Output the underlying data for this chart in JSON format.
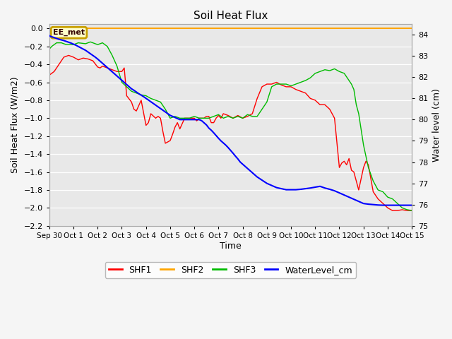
{
  "title": "Soil Heat Flux",
  "ylabel_left": "Soil Heat Flux (W/m2)",
  "ylabel_right": "Water level (cm)",
  "xlabel": "Time",
  "ylim_left": [
    -2.2,
    0.05
  ],
  "ylim_right": [
    75.0,
    84.5
  ],
  "background_color": "#f5f5f5",
  "plot_bg_color": "#e8e8e8",
  "annotation_text": "EE_met",
  "annotation_color": "#c8a000",
  "x_ticks": [
    "Sep 30",
    "Oct 1",
    "Oct 2",
    "Oct 3",
    "Oct 4",
    "Oct 5",
    "Oct 6",
    "Oct 7",
    "Oct 8",
    "Oct 9",
    "Oct 10",
    "Oct 11",
    "Oct 12",
    "Oct 13",
    "Oct 14",
    "Oct 15"
  ],
  "shf2_value": 0.0,
  "shf2_color": "#ffa500",
  "shf1_color": "#ff0000",
  "shf3_color": "#00bb00",
  "water_color": "#0000ff",
  "shf1_x": [
    0,
    0.2,
    0.4,
    0.6,
    0.8,
    1.0,
    1.2,
    1.4,
    1.6,
    1.8,
    2.0,
    2.1,
    2.2,
    2.4,
    2.6,
    2.8,
    3.0,
    3.1,
    3.2,
    3.4,
    3.5,
    3.6,
    3.8,
    4.0,
    4.1,
    4.2,
    4.4,
    4.5,
    4.6,
    4.7,
    4.8,
    5.0,
    5.1,
    5.2,
    5.3,
    5.4,
    5.6,
    5.8,
    6.0,
    6.1,
    6.2,
    6.4,
    6.5,
    6.6,
    6.7,
    6.8,
    6.9,
    7.0,
    7.1,
    7.2,
    7.4,
    7.6,
    7.8,
    8.0,
    8.2,
    8.4,
    8.6,
    8.8,
    9.0,
    9.2,
    9.4,
    9.6,
    9.8,
    10.0,
    10.2,
    10.4,
    10.6,
    10.8,
    11.0,
    11.2,
    11.4,
    11.6,
    11.8,
    12.0,
    12.1,
    12.2,
    12.3,
    12.4,
    12.5,
    12.6,
    12.8,
    13.0,
    13.1,
    13.2,
    13.4,
    13.6,
    13.8,
    14.0,
    14.2,
    14.4,
    14.6,
    14.8,
    15.0
  ],
  "shf1_y": [
    -0.52,
    -0.48,
    -0.4,
    -0.32,
    -0.3,
    -0.32,
    -0.35,
    -0.33,
    -0.34,
    -0.36,
    -0.43,
    -0.44,
    -0.42,
    -0.44,
    -0.46,
    -0.48,
    -0.48,
    -0.44,
    -0.75,
    -0.82,
    -0.9,
    -0.92,
    -0.8,
    -1.08,
    -1.05,
    -0.95,
    -1.0,
    -0.98,
    -1.0,
    -1.15,
    -1.28,
    -1.25,
    -1.18,
    -1.1,
    -1.05,
    -1.12,
    -1.0,
    -1.0,
    -1.0,
    -1.03,
    -1.0,
    -1.0,
    -0.98,
    -0.98,
    -1.05,
    -1.05,
    -1.0,
    -0.97,
    -1.0,
    -0.95,
    -0.97,
    -1.0,
    -0.97,
    -1.0,
    -0.98,
    -0.95,
    -0.78,
    -0.65,
    -0.62,
    -0.62,
    -0.6,
    -0.63,
    -0.65,
    -0.65,
    -0.68,
    -0.7,
    -0.72,
    -0.78,
    -0.8,
    -0.85,
    -0.85,
    -0.9,
    -1.0,
    -1.55,
    -1.5,
    -1.48,
    -1.52,
    -1.45,
    -1.58,
    -1.6,
    -1.8,
    -1.55,
    -1.48,
    -1.52,
    -1.82,
    -1.9,
    -1.95,
    -2.0,
    -2.03,
    -2.03,
    -2.02,
    -2.03,
    -2.03
  ],
  "shf3_x": [
    0,
    0.1,
    0.2,
    0.3,
    0.5,
    0.7,
    1.0,
    1.2,
    1.5,
    1.7,
    2.0,
    2.2,
    2.4,
    2.6,
    2.8,
    3.0,
    3.2,
    3.4,
    3.6,
    3.8,
    4.0,
    4.2,
    4.4,
    4.6,
    4.8,
    5.0,
    5.2,
    5.4,
    5.6,
    5.8,
    6.0,
    6.2,
    6.4,
    6.6,
    6.8,
    7.0,
    7.2,
    7.4,
    7.6,
    7.8,
    8.0,
    8.2,
    8.4,
    8.6,
    8.8,
    9.0,
    9.2,
    9.4,
    9.6,
    9.8,
    10.0,
    10.2,
    10.4,
    10.6,
    10.8,
    11.0,
    11.2,
    11.4,
    11.6,
    11.8,
    12.0,
    12.2,
    12.4,
    12.5,
    12.6,
    12.7,
    12.8,
    13.0,
    13.2,
    13.4,
    13.6,
    13.8,
    14.0,
    14.2,
    14.4,
    14.6,
    14.8,
    15.0
  ],
  "shf3_y": [
    -0.23,
    -0.2,
    -0.18,
    -0.16,
    -0.16,
    -0.18,
    -0.18,
    -0.16,
    -0.17,
    -0.15,
    -0.18,
    -0.16,
    -0.2,
    -0.3,
    -0.42,
    -0.6,
    -0.65,
    -0.7,
    -0.72,
    -0.74,
    -0.75,
    -0.78,
    -0.8,
    -0.82,
    -0.9,
    -1.0,
    -0.98,
    -1.0,
    -1.0,
    -1.0,
    -0.98,
    -1.0,
    -1.0,
    -1.0,
    -0.98,
    -0.96,
    -1.0,
    -0.98,
    -1.0,
    -0.98,
    -1.0,
    -0.96,
    -0.98,
    -0.98,
    -0.9,
    -0.82,
    -0.65,
    -0.62,
    -0.62,
    -0.62,
    -0.64,
    -0.62,
    -0.6,
    -0.58,
    -0.55,
    -0.5,
    -0.48,
    -0.46,
    -0.47,
    -0.45,
    -0.48,
    -0.5,
    -0.58,
    -0.62,
    -0.68,
    -0.85,
    -0.95,
    -1.3,
    -1.55,
    -1.7,
    -1.8,
    -1.82,
    -1.88,
    -1.9,
    -1.95,
    -2.0,
    -2.02,
    -2.03
  ],
  "water_x": [
    0,
    0.05,
    0.1,
    0.15,
    0.2,
    0.25,
    0.3,
    0.35,
    0.4,
    0.5,
    0.6,
    0.7,
    0.8,
    0.9,
    1.0,
    1.1,
    1.2,
    1.3,
    1.4,
    1.5,
    1.6,
    1.7,
    1.8,
    1.9,
    2.0,
    2.1,
    2.2,
    2.3,
    2.4,
    2.5,
    2.6,
    2.7,
    2.8,
    2.9,
    3.0,
    3.1,
    3.2,
    3.3,
    3.4,
    3.5,
    3.6,
    3.7,
    3.8,
    3.9,
    4.0,
    4.1,
    4.2,
    4.3,
    4.4,
    4.5,
    4.6,
    4.7,
    4.8,
    4.9,
    5.0,
    5.2,
    5.4,
    5.6,
    5.8,
    6.0,
    6.2,
    6.3,
    6.4,
    6.5,
    6.6,
    6.7,
    6.8,
    6.9,
    7.0,
    7.1,
    7.2,
    7.3,
    7.4,
    7.5,
    7.6,
    7.7,
    7.8,
    7.9,
    8.0,
    8.1,
    8.2,
    8.3,
    8.4,
    8.5,
    8.6,
    8.8,
    9.0,
    9.2,
    9.4,
    9.6,
    9.8,
    10.0,
    10.2,
    10.4,
    10.6,
    10.8,
    11.0,
    11.2,
    11.4,
    11.6,
    11.8,
    12.0,
    12.2,
    12.4,
    12.6,
    12.8,
    13.0,
    13.2,
    13.4,
    13.6,
    13.8,
    14.0,
    14.2,
    14.4,
    14.6,
    14.8,
    15.0
  ],
  "water_y": [
    83.95,
    83.92,
    83.9,
    83.88,
    83.86,
    83.84,
    83.82,
    83.8,
    83.78,
    83.75,
    83.72,
    83.68,
    83.64,
    83.6,
    83.55,
    83.5,
    83.44,
    83.38,
    83.32,
    83.26,
    83.18,
    83.1,
    83.02,
    82.94,
    82.85,
    82.75,
    82.65,
    82.55,
    82.45,
    82.35,
    82.25,
    82.15,
    82.05,
    81.95,
    81.85,
    81.75,
    81.65,
    81.55,
    81.45,
    81.38,
    81.3,
    81.22,
    81.15,
    81.08,
    81.0,
    80.92,
    80.84,
    80.76,
    80.68,
    80.6,
    80.52,
    80.44,
    80.36,
    80.28,
    80.2,
    80.1,
    80.0,
    80.0,
    80.0,
    80.0,
    80.0,
    79.95,
    79.85,
    79.75,
    79.6,
    79.5,
    79.38,
    79.25,
    79.12,
    79.0,
    78.9,
    78.8,
    78.68,
    78.55,
    78.42,
    78.28,
    78.15,
    78.0,
    77.9,
    77.8,
    77.7,
    77.6,
    77.5,
    77.4,
    77.3,
    77.15,
    77.0,
    76.9,
    76.8,
    76.75,
    76.7,
    76.7,
    76.7,
    76.72,
    76.75,
    76.78,
    76.82,
    76.86,
    76.78,
    76.72,
    76.65,
    76.55,
    76.45,
    76.35,
    76.25,
    76.15,
    76.05,
    76.02,
    76.0,
    75.98,
    75.97,
    75.97,
    75.97,
    75.97,
    75.97,
    75.97,
    75.97
  ]
}
